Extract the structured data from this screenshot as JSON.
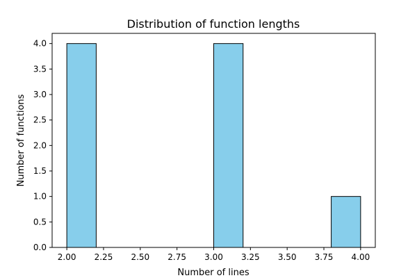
{
  "chart_data": {
    "type": "bar",
    "title": "Distribution of function lengths",
    "xlabel": "Number of lines",
    "ylabel": "Number of functions",
    "bins": [
      {
        "start": 2.0,
        "end": 2.2,
        "count": 4
      },
      {
        "start": 3.0,
        "end": 3.2,
        "count": 4
      },
      {
        "start": 3.8,
        "end": 4.0,
        "count": 1
      }
    ],
    "xlim": [
      1.9,
      4.1
    ],
    "ylim": [
      0,
      4.2
    ],
    "xticks": [
      "2.00",
      "2.25",
      "2.50",
      "2.75",
      "3.00",
      "3.25",
      "3.50",
      "3.75",
      "4.00"
    ],
    "yticks": [
      "0.0",
      "0.5",
      "1.0",
      "1.5",
      "2.0",
      "2.5",
      "3.0",
      "3.5",
      "4.0"
    ],
    "bar_color": "#87CEEB",
    "edge_color": "#000000",
    "grid": false,
    "legend": "none"
  }
}
